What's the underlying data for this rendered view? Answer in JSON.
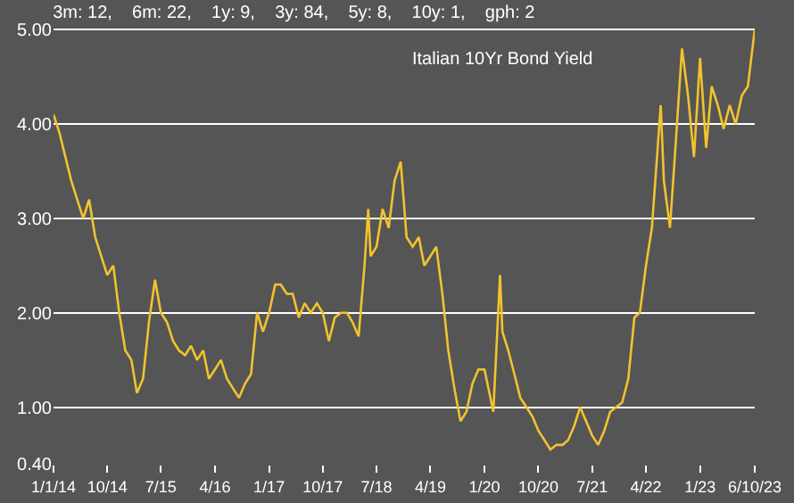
{
  "chart_data": {
    "type": "line",
    "title": "Italian 10Yr Bond Yield",
    "subtitle": "3m: 12,    6m: 22,    1y: 9,    3y: 84,    5y: 8,    10y: 1,    gph: 2",
    "x": [
      "2014-01-01",
      "2014-02-01",
      "2014-04-01",
      "2014-06-01",
      "2014-07-01",
      "2014-08-01",
      "2014-10-01",
      "2014-11-01",
      "2014-12-01",
      "2015-01-01",
      "2015-02-01",
      "2015-03-01",
      "2015-04-01",
      "2015-05-01",
      "2015-06-01",
      "2015-07-01",
      "2015-08-01",
      "2015-09-01",
      "2015-10-01",
      "2015-11-01",
      "2015-12-01",
      "2016-01-01",
      "2016-02-01",
      "2016-03-01",
      "2016-04-01",
      "2016-05-01",
      "2016-06-01",
      "2016-07-01",
      "2016-08-01",
      "2016-09-01",
      "2016-10-01",
      "2016-11-01",
      "2016-12-01",
      "2017-01-01",
      "2017-02-01",
      "2017-03-01",
      "2017-04-01",
      "2017-05-01",
      "2017-06-01",
      "2017-07-01",
      "2017-08-01",
      "2017-09-01",
      "2017-10-01",
      "2017-11-01",
      "2017-12-01",
      "2018-01-01",
      "2018-02-01",
      "2018-03-01",
      "2018-04-01",
      "2018-05-01",
      "2018-05-20",
      "2018-06-01",
      "2018-07-01",
      "2018-08-01",
      "2018-09-01",
      "2018-10-01",
      "2018-11-01",
      "2018-12-01",
      "2019-01-01",
      "2019-02-01",
      "2019-03-01",
      "2019-04-01",
      "2019-05-01",
      "2019-06-01",
      "2019-07-01",
      "2019-08-01",
      "2019-09-01",
      "2019-10-01",
      "2019-11-01",
      "2019-12-01",
      "2020-01-01",
      "2020-02-15",
      "2020-03-20",
      "2020-04-01",
      "2020-05-01",
      "2020-06-01",
      "2020-07-01",
      "2020-08-01",
      "2020-09-01",
      "2020-10-01",
      "2020-11-01",
      "2020-12-01",
      "2021-01-01",
      "2021-02-01",
      "2021-03-01",
      "2021-04-01",
      "2021-05-01",
      "2021-06-01",
      "2021-07-01",
      "2021-08-01",
      "2021-09-01",
      "2021-10-01",
      "2021-11-01",
      "2021-12-01",
      "2022-01-01",
      "2022-02-01",
      "2022-03-01",
      "2022-04-01",
      "2022-05-01",
      "2022-06-15",
      "2022-07-01",
      "2022-08-01",
      "2022-09-01",
      "2022-10-01",
      "2022-11-01",
      "2022-12-01",
      "2023-01-01",
      "2023-02-01",
      "2023-03-01",
      "2023-04-01",
      "2023-05-01",
      "2023-06-01",
      "2023-07-01",
      "2023-08-01",
      "2023-09-01",
      "2023-10-06"
    ],
    "series": [
      {
        "color": "#f2c32e",
        "values": [
          4.1,
          3.9,
          3.4,
          3.0,
          3.2,
          2.8,
          2.4,
          2.5,
          2.0,
          1.6,
          1.5,
          1.15,
          1.3,
          1.9,
          2.35,
          2.0,
          1.9,
          1.7,
          1.6,
          1.55,
          1.65,
          1.5,
          1.6,
          1.3,
          1.4,
          1.5,
          1.3,
          1.2,
          1.1,
          1.25,
          1.35,
          2.0,
          1.8,
          2.0,
          2.3,
          2.3,
          2.2,
          2.2,
          1.95,
          2.1,
          2.0,
          2.1,
          2.0,
          1.7,
          1.95,
          2.0,
          2.0,
          1.9,
          1.75,
          2.5,
          3.1,
          2.6,
          2.7,
          3.1,
          2.9,
          3.4,
          3.6,
          2.8,
          2.7,
          2.8,
          2.5,
          2.6,
          2.7,
          2.2,
          1.6,
          1.2,
          0.85,
          0.95,
          1.25,
          1.4,
          1.4,
          0.95,
          2.4,
          1.8,
          1.6,
          1.35,
          1.1,
          1.0,
          0.9,
          0.75,
          0.65,
          0.55,
          0.6,
          0.6,
          0.65,
          0.8,
          1.0,
          0.85,
          0.7,
          0.6,
          0.75,
          0.95,
          1.0,
          1.05,
          1.3,
          1.95,
          2.0,
          2.5,
          2.9,
          4.2,
          3.4,
          2.9,
          3.85,
          4.8,
          4.3,
          3.65,
          4.7,
          3.75,
          4.4,
          4.2,
          3.95,
          4.2,
          4.0,
          4.3,
          4.4,
          5.0
        ]
      }
    ],
    "ylim": [
      0.4,
      5.05
    ],
    "yticks": [
      {
        "value": 0.4,
        "label": "0.40"
      },
      {
        "value": 1,
        "label": "1.00"
      },
      {
        "value": 2,
        "label": "2.00"
      },
      {
        "value": 3,
        "label": "3.00"
      },
      {
        "value": 4,
        "label": "4.00"
      },
      {
        "value": 5,
        "label": "5.00"
      }
    ],
    "xlim": [
      "2014-01-01",
      "2023-10-06"
    ],
    "xticks": [
      {
        "value": "2014-01-01",
        "label": "1/1/14"
      },
      {
        "value": "2014-10-01",
        "label": "10/14"
      },
      {
        "value": "2015-07-01",
        "label": "7/15"
      },
      {
        "value": "2016-04-01",
        "label": "4/16"
      },
      {
        "value": "2017-01-01",
        "label": "1/17"
      },
      {
        "value": "2017-10-01",
        "label": "10/17"
      },
      {
        "value": "2018-07-01",
        "label": "7/18"
      },
      {
        "value": "2019-04-01",
        "label": "4/19"
      },
      {
        "value": "2020-01-01",
        "label": "1/20"
      },
      {
        "value": "2020-10-01",
        "label": "10/20"
      },
      {
        "value": "2021-07-01",
        "label": "7/21"
      },
      {
        "value": "2022-04-01",
        "label": "4/22"
      },
      {
        "value": "2023-01-01",
        "label": "1/23"
      },
      {
        "value": "2023-10-06",
        "label": "6/10/23"
      }
    ],
    "grid": "y",
    "marker": "none",
    "line_style": "solid"
  }
}
